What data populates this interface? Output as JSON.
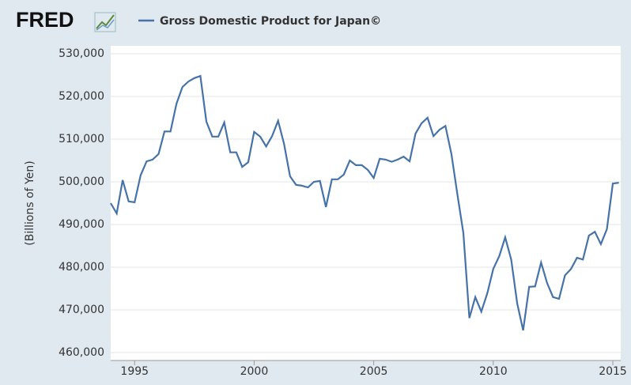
{
  "chart_data": {
    "type": "line",
    "logo": "FRED",
    "ylabel": "(Billions of Yen)",
    "color": "#4572a7",
    "grid": true,
    "legend": "top",
    "x": [
      1994,
      1994.25,
      1994.5,
      1994.75,
      1995,
      1995.25,
      1995.5,
      1995.75,
      1996,
      1996.25,
      1996.5,
      1996.75,
      1997,
      1997.25,
      1997.5,
      1997.75,
      1998,
      1998.25,
      1998.5,
      1998.75,
      1999,
      1999.25,
      1999.5,
      1999.75,
      2000,
      2000.25,
      2000.5,
      2000.75,
      2001,
      2001.25,
      2001.5,
      2001.75,
      2002,
      2002.25,
      2002.5,
      2002.75,
      2003,
      2003.25,
      2003.5,
      2003.75,
      2004,
      2004.25,
      2004.5,
      2004.75,
      2005,
      2005.25,
      2005.5,
      2005.75,
      2006,
      2006.25,
      2006.5,
      2006.75,
      2007,
      2007.25,
      2007.5,
      2007.75,
      2008,
      2008.25,
      2008.5,
      2008.75,
      2009,
      2009.25,
      2009.5,
      2009.75,
      2010,
      2010.25,
      2010.5,
      2010.75,
      2011,
      2011.25,
      2011.5,
      2011.75,
      2012,
      2012.25,
      2012.5,
      2012.75,
      2013,
      2013.25,
      2013.5,
      2013.75,
      2014,
      2014.25,
      2014.5,
      2014.75,
      2015,
      2015.25
    ],
    "series": [
      {
        "name": "Gross Domestic Product for Japan©",
        "color": "#4572a7",
        "values": [
          495000,
          492600,
          500400,
          495400,
          495200,
          501500,
          504800,
          505200,
          506500,
          511800,
          511800,
          518300,
          522200,
          523500,
          524300,
          524800,
          514100,
          510600,
          510600,
          513900,
          506900,
          506900,
          503500,
          504600,
          511700,
          510600,
          508300,
          510700,
          514300,
          508900,
          501300,
          499300,
          499100,
          498700,
          500000,
          500200,
          494100,
          500600,
          500600,
          501700,
          505000,
          503900,
          503900,
          502800,
          500900,
          505400,
          505200,
          504700,
          505200,
          505900,
          504800,
          511300,
          513700,
          515000,
          510700,
          512200,
          513100,
          506500,
          497000,
          488000,
          468100,
          473000,
          469600,
          473900,
          479600,
          482600,
          487000,
          481800,
          471500,
          465200,
          475400,
          475500,
          481100,
          476300,
          473000,
          472600,
          478100,
          479600,
          482200,
          481800,
          487400,
          488300,
          485400,
          488900,
          499600,
          499800
        ]
      }
    ],
    "xlim": [
      1994,
      2015.33
    ],
    "xticks": [
      1995,
      2000,
      2005,
      2010,
      2015
    ],
    "ylim": [
      460000,
      530000
    ],
    "yticks": [
      {
        "value": 460000,
        "label": "460,000"
      },
      {
        "value": 470000,
        "label": "470,000"
      },
      {
        "value": 480000,
        "label": "480,000"
      },
      {
        "value": 490000,
        "label": "490,000"
      },
      {
        "value": 500000,
        "label": "500,000"
      },
      {
        "value": 510000,
        "label": "510,000"
      },
      {
        "value": 520000,
        "label": "520,000"
      },
      {
        "value": 530000,
        "label": "530,000"
      }
    ]
  }
}
